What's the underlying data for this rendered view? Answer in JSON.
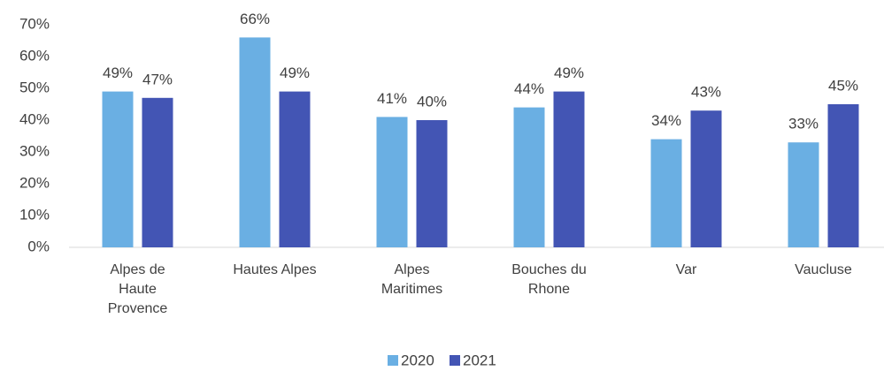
{
  "chart_data": {
    "type": "bar",
    "categories": [
      "Alpes de Haute Provence",
      "Hautes Alpes",
      "Alpes Maritimes",
      "Bouches du Rhone",
      "Var",
      "Vaucluse"
    ],
    "series": [
      {
        "name": "2020",
        "color": "#6aafe3",
        "values": [
          49,
          66,
          41,
          44,
          34,
          33
        ],
        "value_labels": [
          "49%",
          "66%",
          "41%",
          "44%",
          "34%",
          "33%"
        ]
      },
      {
        "name": "2021",
        "color": "#4355b4",
        "values": [
          47,
          49,
          40,
          49,
          43,
          45
        ],
        "value_labels": [
          "47%",
          "49%",
          "40%",
          "49%",
          "43%",
          "45%"
        ]
      }
    ],
    "ylim": [
      0,
      70
    ],
    "yticks": [
      {
        "value": 0,
        "label": "0%"
      },
      {
        "value": 10,
        "label": "10%"
      },
      {
        "value": 20,
        "label": "20%"
      },
      {
        "value": 30,
        "label": "30%"
      },
      {
        "value": 40,
        "label": "40%"
      },
      {
        "value": 50,
        "label": "50%"
      },
      {
        "value": 60,
        "label": "60%"
      },
      {
        "value": 70,
        "label": "70%"
      }
    ],
    "legend": "bottom"
  }
}
